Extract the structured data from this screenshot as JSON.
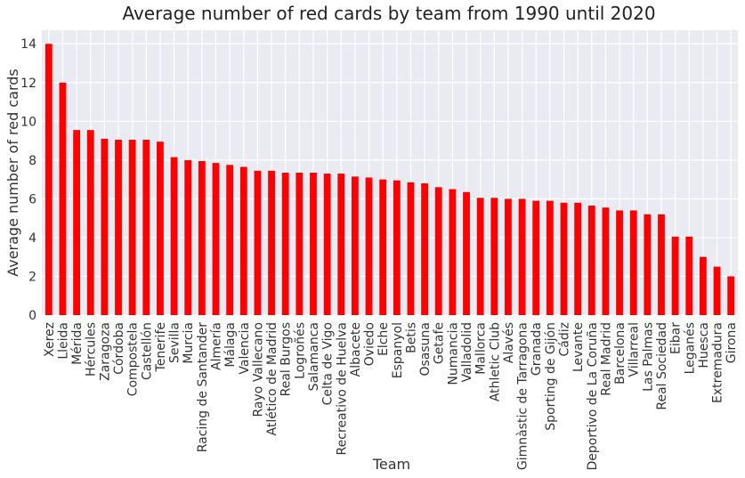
{
  "chart_data": {
    "type": "bar",
    "title": "Average number of red cards by team from 1990 until 2020",
    "xlabel": "Team",
    "ylabel": "Average number of red cards",
    "ylim": [
      0,
      14.7
    ],
    "yticks": [
      0,
      2,
      4,
      6,
      8,
      10,
      12,
      14
    ],
    "grid": true,
    "bar_color": "#ff0000",
    "background_color": "#eaeaf2",
    "grid_color": "#ffffff",
    "categories": [
      "Xerez",
      "Lleida",
      "Mérida",
      "Hércules",
      "Zaragoza",
      "Córdoba",
      "Compostela",
      "Castellón",
      "Tenerife",
      "Sevilla",
      "Murcia",
      "Racing de Santander",
      "Almería",
      "Málaga",
      "Valencia",
      "Rayo Vallecano",
      "Atlético de Madrid",
      "Real Burgos",
      "Logroñés",
      "Salamanca",
      "Celta de Vigo",
      "Recreativo de Huelva",
      "Albacete",
      "Oviedo",
      "Elche",
      "Espanyol",
      "Betis",
      "Osasuna",
      "Getafe",
      "Numancia",
      "Valladolid",
      "Mallorca",
      "Athletic Club",
      "Alavés",
      "Gimnàstic de Tarragona",
      "Granada",
      "Sporting de Gijón",
      "Cádiz",
      "Levante",
      "Deportivo de La Coruña",
      "Real Madrid",
      "Barcelona",
      "Villarreal",
      "Las Palmas",
      "Real Sociedad",
      "Eibar",
      "Leganés",
      "Huesca",
      "Extremadura",
      "Girona"
    ],
    "values": [
      14.0,
      12.0,
      9.55,
      9.55,
      9.1,
      9.05,
      9.05,
      9.05,
      8.95,
      8.15,
      8.0,
      7.95,
      7.85,
      7.75,
      7.65,
      7.45,
      7.45,
      7.35,
      7.35,
      7.35,
      7.3,
      7.3,
      7.15,
      7.1,
      7.0,
      6.95,
      6.85,
      6.8,
      6.6,
      6.5,
      6.35,
      6.05,
      6.05,
      6.0,
      6.0,
      5.9,
      5.9,
      5.8,
      5.8,
      5.65,
      5.55,
      5.4,
      5.4,
      5.2,
      5.2,
      4.05,
      4.05,
      3.0,
      2.5,
      2.0
    ]
  }
}
